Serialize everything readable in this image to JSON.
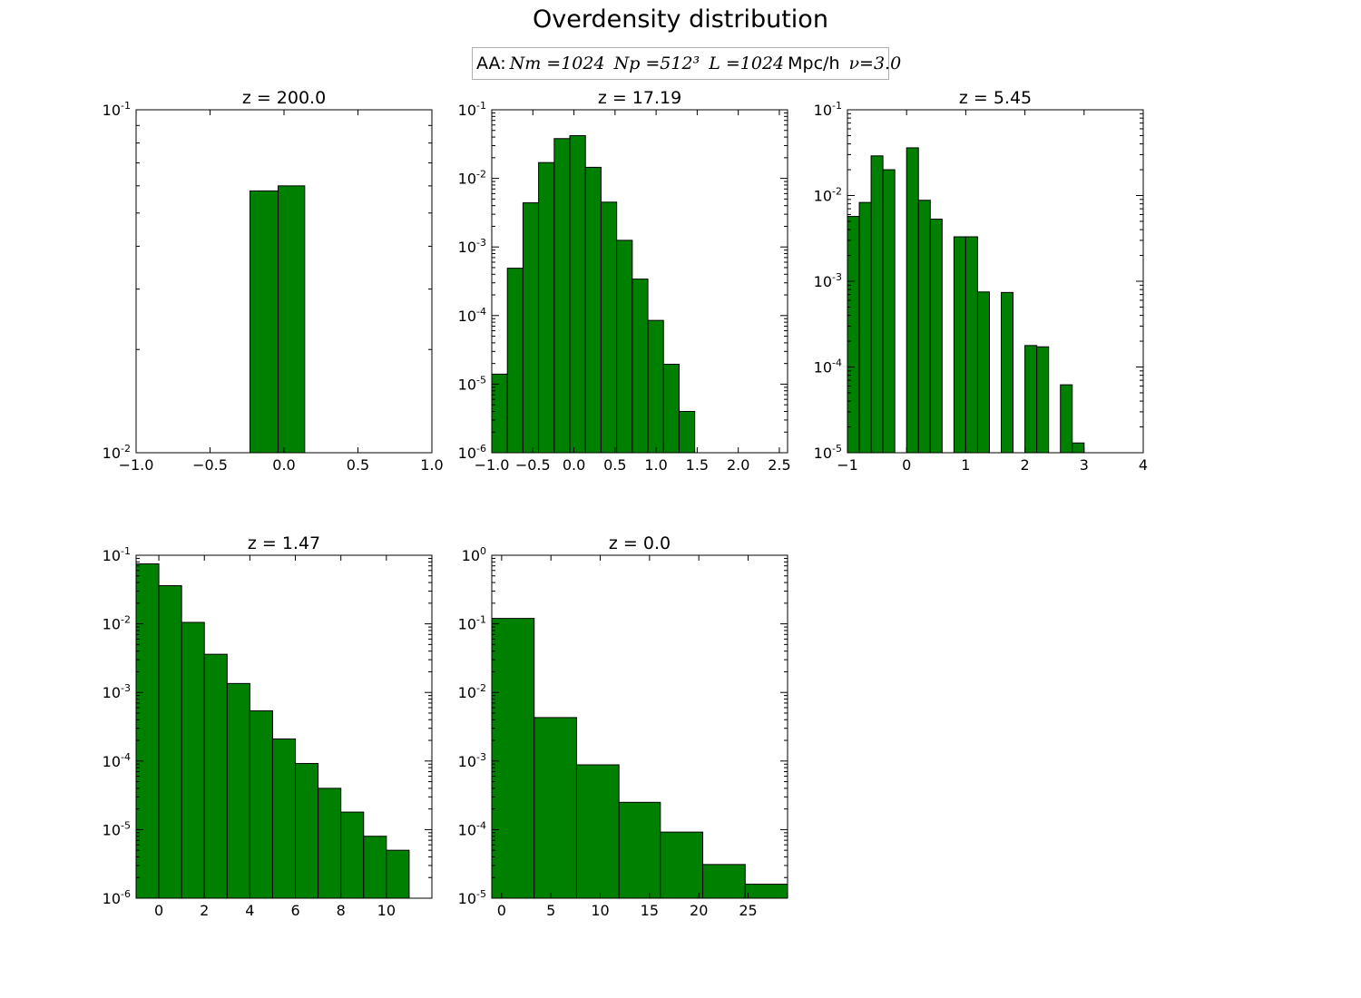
{
  "figure": {
    "title": "Overdensity distribution",
    "legend": {
      "prefix": "AA:",
      "nm": "Nm =1024",
      "np": "Np =512³",
      "l_math": "L =1024",
      "l_unit": "Mpc/h",
      "nu": "ν=3.0"
    },
    "bar_color": "#008000",
    "edge_color": "#000000"
  },
  "chart_data": [
    {
      "type": "bar",
      "title": "z = 200.0",
      "yscale": "log",
      "xlim": [
        -1.0,
        1.0
      ],
      "ylim": [
        0.01,
        0.1
      ],
      "xticks": [
        -1.0,
        -0.5,
        0.0,
        0.5,
        1.0
      ],
      "xtick_labels": [
        "−1.0",
        "−0.5",
        "0.0",
        "0.5",
        "1.0"
      ],
      "ytick_exponents": [
        -2,
        -1
      ],
      "bin_edges": [
        -0.23,
        -0.04,
        0.14
      ],
      "values": [
        0.058,
        0.06
      ]
    },
    {
      "type": "bar",
      "title": "z = 17.19",
      "yscale": "log",
      "xlim": [
        -1.0,
        2.6
      ],
      "ylim": [
        1e-06,
        0.1
      ],
      "xticks": [
        -1.0,
        -0.5,
        0.0,
        0.5,
        1.0,
        1.5,
        2.0,
        2.5
      ],
      "xtick_labels": [
        "−1.0",
        "−0.5",
        "0.0",
        "0.5",
        "1.0",
        "1.5",
        "2.0",
        "2.5"
      ],
      "ytick_exponents": [
        -6,
        -5,
        -4,
        -3,
        -2,
        -1
      ],
      "bin_edges": [
        -1.0,
        -0.81,
        -0.62,
        -0.43,
        -0.24,
        -0.05,
        0.14,
        0.33,
        0.52,
        0.71,
        0.9,
        1.09,
        1.28,
        1.47
      ],
      "values": [
        1.4e-05,
        0.00049,
        0.0044,
        0.017,
        0.038,
        0.042,
        0.0145,
        0.0045,
        0.00125,
        0.00034,
        8.5e-05,
        1.95e-05,
        4e-06
      ]
    },
    {
      "type": "bar",
      "title": "z = 5.45",
      "yscale": "log",
      "xlim": [
        -1.0,
        4.0
      ],
      "ylim": [
        1e-05,
        0.1
      ],
      "xticks": [
        -1,
        0,
        1,
        2,
        3,
        4
      ],
      "xtick_labels": [
        "−1",
        "0",
        "1",
        "2",
        "3",
        "4"
      ],
      "ytick_exponents": [
        -5,
        -4,
        -3,
        -2,
        -1
      ],
      "bin_edges": [
        -1.0,
        -0.8,
        -0.6,
        -0.4,
        -0.2,
        0.0,
        0.2,
        0.4,
        0.6,
        0.8,
        1.0,
        1.2,
        1.4,
        1.6,
        1.8,
        2.0,
        2.2,
        2.4,
        2.6,
        2.8,
        3.0
      ],
      "values": [
        0.0057,
        0.0083,
        0.029,
        0.02,
        0,
        0.036,
        0.0088,
        0.0053,
        0,
        0.0033,
        0.0033,
        0.00075,
        0,
        0.00074,
        0,
        0.000178,
        0.000172,
        0,
        6.2e-05,
        1.3e-05
      ]
    },
    {
      "type": "bar",
      "title": "z = 1.47",
      "yscale": "log",
      "xlim": [
        -1.0,
        12.0
      ],
      "ylim": [
        1e-06,
        0.1
      ],
      "xticks": [
        0,
        2,
        4,
        6,
        8,
        10
      ],
      "xtick_labels": [
        "0",
        "2",
        "4",
        "6",
        "8",
        "10"
      ],
      "ytick_exponents": [
        -6,
        -5,
        -4,
        -3,
        -2,
        -1
      ],
      "bin_edges": [
        -1,
        0,
        1,
        2,
        3,
        4,
        5,
        6,
        7,
        8,
        9,
        10,
        11
      ],
      "values": [
        0.075,
        0.036,
        0.0105,
        0.0036,
        0.00135,
        0.00054,
        0.00021,
        9.2e-05,
        4e-05,
        1.8e-05,
        8e-06,
        5e-06
      ]
    },
    {
      "type": "bar",
      "title": "z = 0.0",
      "yscale": "log",
      "xlim": [
        -1.0,
        29.0
      ],
      "ylim": [
        1e-05,
        1.0
      ],
      "xticks": [
        0,
        5,
        10,
        15,
        20,
        25
      ],
      "xtick_labels": [
        "0",
        "5",
        "10",
        "15",
        "20",
        "25"
      ],
      "ytick_exponents": [
        -5,
        -4,
        -3,
        -2,
        -1,
        0
      ],
      "bin_edges": [
        -1,
        3.3,
        7.6,
        11.9,
        16.1,
        20.4,
        24.7,
        29
      ],
      "values": [
        0.12,
        0.0043,
        0.00088,
        0.00025,
        9.2e-05,
        3.1e-05,
        1.6e-05
      ]
    }
  ]
}
